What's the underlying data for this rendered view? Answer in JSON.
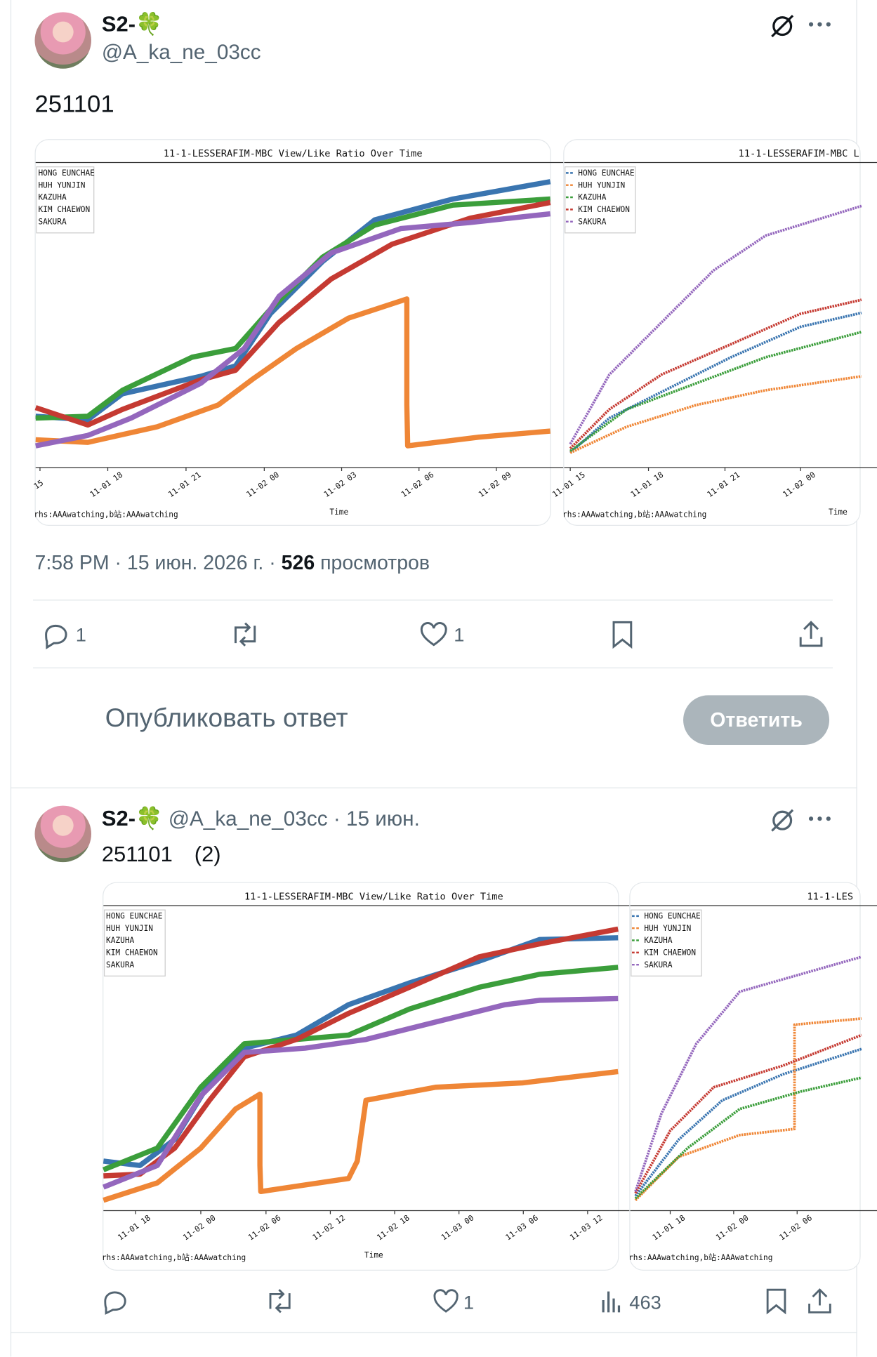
{
  "tweet": {
    "display_name": "S2-🍀",
    "handle": "@A_ka_ne_03cc",
    "text": "251101",
    "time": "7:58 PM · 15 июн. 2026 г. ·",
    "views_count": "526",
    "views_label": "просмотров",
    "replies": "1",
    "likes": "1"
  },
  "chart_legend": [
    "HONG EUNCHAE",
    "HUH YUNJIN",
    "KAZUHA",
    "KIM CHAEWON",
    "SAKURA"
  ],
  "chart_credit": "rhs:AAAwatching,b站:AAAwatching",
  "charts": [
    {
      "title": "11-1-LESSERAFIM-MBC View/Like Ratio Over Time",
      "xticks": [
        "15",
        "11-01 18",
        "11-01 21",
        "11-02 00",
        "11-02 03",
        "11-02 06",
        "11-02 09"
      ],
      "xlabel": "Time"
    },
    {
      "title": "11-1-LESSERAFIM-MBC L",
      "xticks": [
        "11-01 15",
        "11-01 18",
        "11-01 21",
        "11-02 00"
      ],
      "xlabel": "Time"
    },
    {
      "title": "11-1-LESSERAFIM-MBC View/Like Ratio Over Time",
      "xticks": [
        "11-01 18",
        "11-02 00",
        "11-02 06",
        "11-02 12",
        "11-02 18",
        "11-03 00",
        "11-03 06",
        "11-03 12"
      ],
      "xlabel": "Time"
    },
    {
      "title": "11-1-LES",
      "xticks": [
        "11-01 18",
        "11-02 00",
        "11-02 06"
      ]
    }
  ],
  "reply": {
    "placeholder": "Опубликовать ответ",
    "button": "Ответить"
  },
  "tweet2": {
    "display_name": "S2-🍀",
    "handle": "@A_ka_ne_03cc",
    "date": "· 15 июн.",
    "text": "251101　(2)",
    "likes": "1",
    "views": "463"
  }
}
